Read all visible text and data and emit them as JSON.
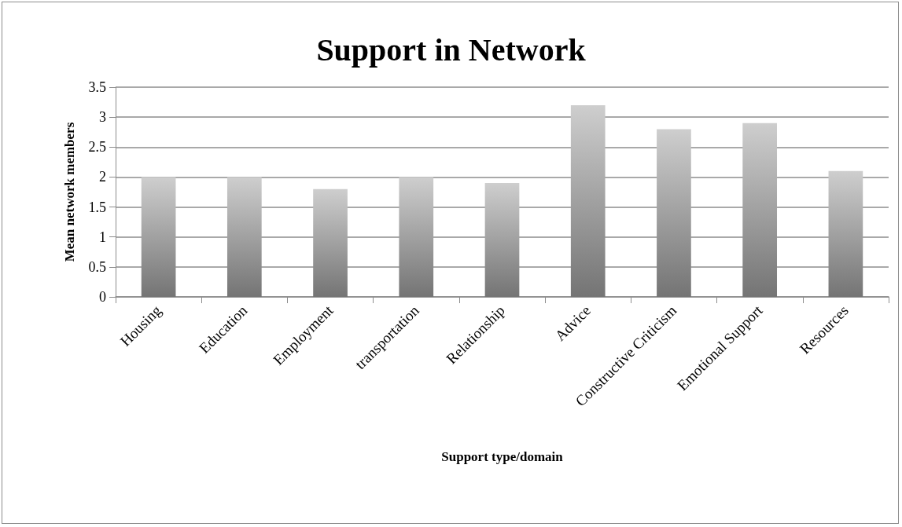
{
  "chart_data": {
    "type": "bar",
    "title": "Support in Network",
    "xlabel": "Support type/domain",
    "ylabel": "Mean network members",
    "categories": [
      "Housing",
      "Education",
      "Employment",
      "transportation",
      "Relationship",
      "Advice",
      "Constructive Criticism",
      "Emotional Support",
      "Resources"
    ],
    "values": [
      2,
      2,
      1.8,
      2,
      1.9,
      3.2,
      2.8,
      2.9,
      2.1
    ],
    "color": "#a6a6a6",
    "ylim": [
      0,
      3.5
    ],
    "yticks": [
      0,
      0.5,
      1,
      1.5,
      2,
      2.5,
      3,
      3.5
    ],
    "grid": "y"
  }
}
